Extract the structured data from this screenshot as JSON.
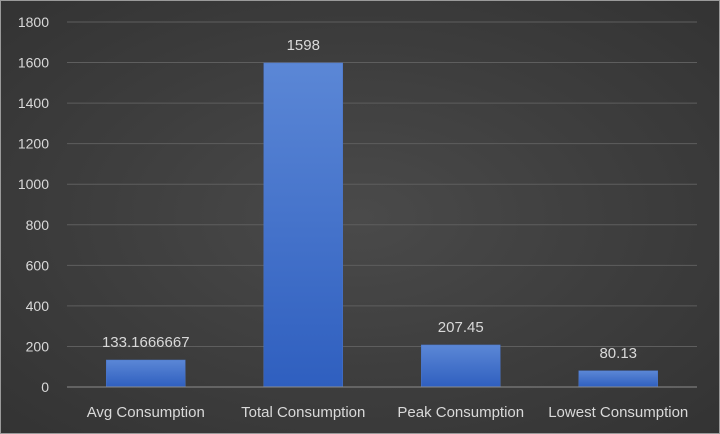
{
  "chart_data": {
    "type": "bar",
    "categories": [
      "Avg Consumption",
      "Total Consumption",
      "Peak Consumption",
      "Lowest Consumption"
    ],
    "values": [
      133.1666667,
      1598,
      207.45,
      80.13
    ],
    "data_labels": [
      "133.1666667",
      "1598",
      "207.45",
      "80.13"
    ],
    "title": "",
    "xlabel": "",
    "ylabel": "",
    "ylim": [
      0,
      1800
    ],
    "yticks": [
      0,
      200,
      400,
      600,
      800,
      1000,
      1200,
      1400,
      1600,
      1800
    ],
    "grid": true,
    "legend": "none",
    "colors": {
      "bar_top": "#5b87d6",
      "bar_bottom": "#2f5fbf",
      "background": "#404040",
      "text": "#d9d9d9"
    }
  }
}
